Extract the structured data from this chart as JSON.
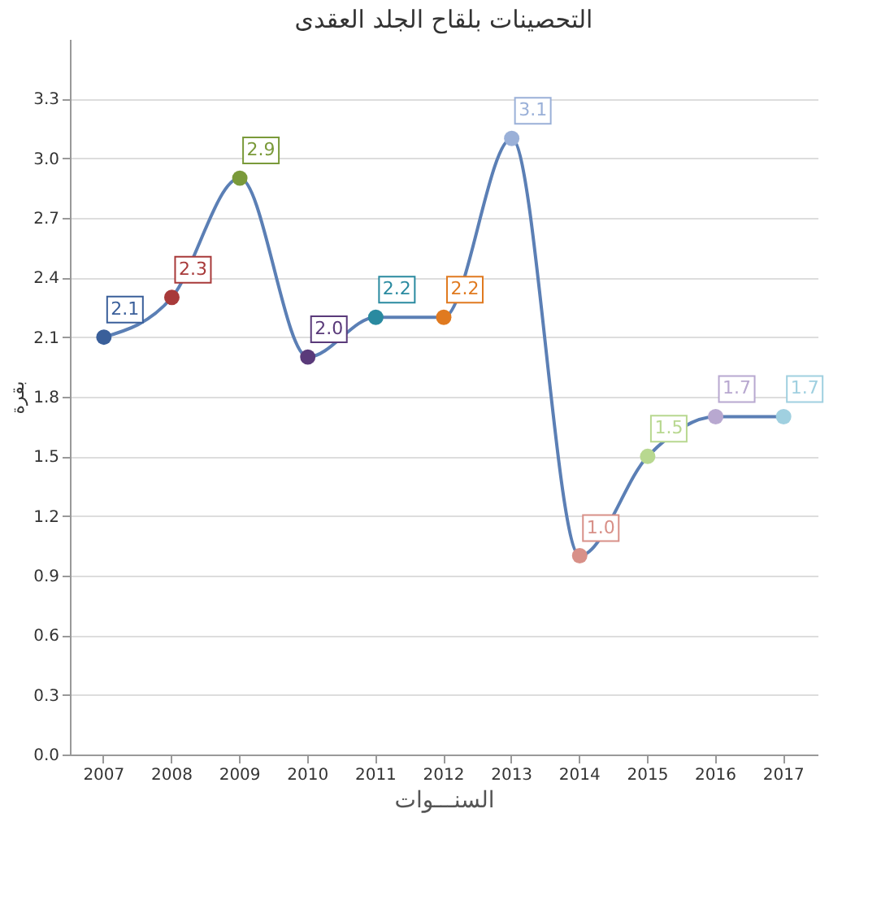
{
  "chart_data": {
    "type": "line",
    "title": "التحصينات بلقاح الجلد العقدى",
    "xlabel": "السنـــوات",
    "ylabel": "بقرة",
    "categories": [
      "2007",
      "2008",
      "2009",
      "2010",
      "2011",
      "2012",
      "2013",
      "2014",
      "2015",
      "2016",
      "2017"
    ],
    "series": [
      {
        "color": "#5b7fb5",
        "values": [
          2.1,
          2.3,
          2.9,
          2.0,
          2.2,
          2.2,
          3.1,
          1.0,
          1.5,
          1.7,
          1.7
        ],
        "value_labels": [
          "2.1",
          "2.3",
          "2.9",
          "2.0",
          "2.2",
          "2.2",
          "3.1",
          "1.0",
          "1.5",
          "1.7",
          "1.7"
        ],
        "colors": [
          "#3a5f9a",
          "#a83a3a",
          "#7a9a3a",
          "#5a3a7a",
          "#2a8aa0",
          "#e07a20",
          "#9ab0d8",
          "#d89088",
          "#b8d890",
          "#b8a8d0",
          "#a0d0e0"
        ]
      }
    ],
    "ylim": [
      0,
      3.6
    ],
    "yticks": [
      {
        "value": 0,
        "label": "0.0"
      },
      0.3,
      0.6,
      0.9,
      1.2,
      1.5,
      1.8,
      2.1,
      2.4,
      2.7,
      {
        "value": 3,
        "label": "3.0"
      },
      3.3
    ],
    "grid": "y",
    "marker": "circle"
  }
}
